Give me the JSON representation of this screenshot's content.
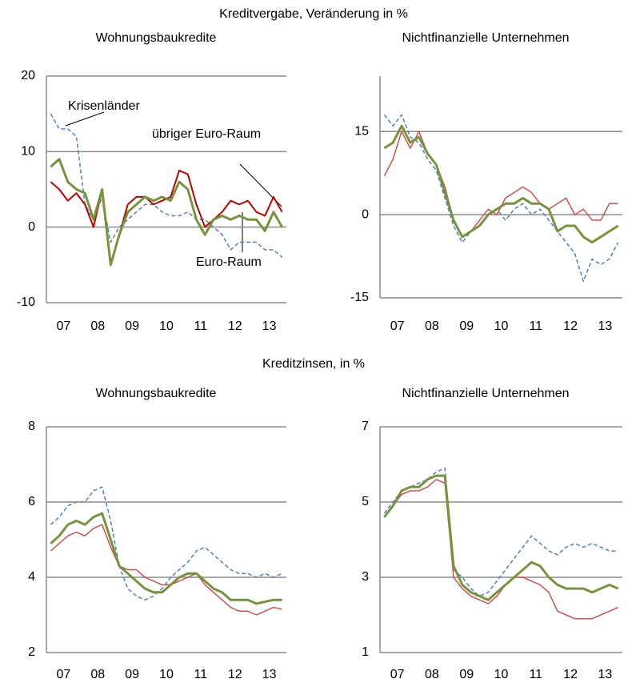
{
  "sections": [
    "Kreditvergabe, Veränderung in %",
    "Kreditzinsen, in %"
  ],
  "chart_data": [
    {
      "type": "line",
      "title": "Wohnungsbaukredite",
      "x": [
        7.125,
        7.375,
        7.625,
        7.875,
        8.125,
        8.375,
        8.625,
        8.875,
        9.125,
        9.375,
        9.625,
        9.875,
        10.125,
        10.375,
        10.625,
        10.875,
        11.125,
        11.375,
        11.625,
        11.875,
        12.125,
        12.375,
        12.625,
        12.875,
        13.125,
        13.375,
        13.625,
        13.875
      ],
      "xlim": [
        7,
        14
      ],
      "xticks": [
        {
          "value": 7.5,
          "label": "07"
        },
        {
          "value": 8.5,
          "label": "08"
        },
        {
          "value": 9.5,
          "label": "09"
        },
        {
          "value": 10.5,
          "label": "10"
        },
        {
          "value": 11.5,
          "label": "11"
        },
        {
          "value": 12.5,
          "label": "12"
        },
        {
          "value": 13.5,
          "label": "13"
        }
      ],
      "ylim": [
        -10,
        20
      ],
      "yticks": [
        -10,
        0,
        10,
        20
      ],
      "grid": true,
      "series": [
        {
          "name": "Krisenländer",
          "color": "#4f81bd",
          "line_style": "dashed",
          "line_width": 1.5,
          "values": [
            15,
            13,
            13,
            12,
            3,
            1,
            4,
            -2,
            0,
            1,
            2,
            3,
            3,
            2,
            1.5,
            1.5,
            2,
            1,
            1,
            0,
            -1,
            -3,
            -2,
            -2,
            -2,
            -3,
            -3,
            -4
          ]
        },
        {
          "name": "übriger Euro-Raum",
          "color": "#c00000",
          "line_style": "solid",
          "line_width": 2,
          "values": [
            6,
            5,
            3.5,
            4.5,
            3,
            0,
            5,
            -5,
            -1,
            3,
            4,
            4,
            3,
            3.5,
            4,
            7.5,
            7,
            3,
            0,
            1,
            2,
            3.5,
            3,
            3.5,
            2,
            1.5,
            4,
            2
          ]
        },
        {
          "name": "Euro-Raum",
          "color": "#77933c",
          "line_style": "solid",
          "line_width": 3,
          "values": [
            8,
            9,
            6,
            5,
            4.5,
            1,
            5,
            -5,
            -1,
            2,
            3,
            4,
            3.5,
            4,
            3.5,
            6,
            5,
            1,
            -1,
            1,
            1.5,
            1,
            1.5,
            1,
            1,
            -0.5,
            2,
            0
          ]
        }
      ]
    },
    {
      "type": "line",
      "title": "Nichtfinanzielle Unternehmen",
      "x": [
        7.125,
        7.375,
        7.625,
        7.875,
        8.125,
        8.375,
        8.625,
        8.875,
        9.125,
        9.375,
        9.625,
        9.875,
        10.125,
        10.375,
        10.625,
        10.875,
        11.125,
        11.375,
        11.625,
        11.875,
        12.125,
        12.375,
        12.625,
        12.875,
        13.125,
        13.375,
        13.625,
        13.875
      ],
      "xlim": [
        7,
        14
      ],
      "xticks": [
        {
          "value": 7.5,
          "label": "07"
        },
        {
          "value": 8.5,
          "label": "08"
        },
        {
          "value": 9.5,
          "label": "09"
        },
        {
          "value": 10.5,
          "label": "10"
        },
        {
          "value": 11.5,
          "label": "11"
        },
        {
          "value": 12.5,
          "label": "12"
        },
        {
          "value": 13.5,
          "label": "13"
        }
      ],
      "ylim": [
        -15,
        25
      ],
      "yticks": [
        -15,
        0,
        15
      ],
      "grid": true,
      "series": [
        {
          "color": "#4f81bd",
          "line_style": "dashed",
          "line_width": 1.5,
          "values": [
            18,
            16,
            18,
            14,
            13,
            10,
            8,
            3,
            -2,
            -5,
            -3,
            -2,
            0,
            1,
            -1,
            1,
            2,
            0,
            1,
            -1,
            -3,
            -5,
            -7,
            -12,
            -8,
            -9,
            -8,
            -5
          ]
        },
        {
          "color": "#d05050",
          "line_style": "solid",
          "line_width": 1.5,
          "values": [
            7,
            10,
            15,
            12,
            15,
            11,
            9,
            5,
            -1,
            -4,
            -3,
            -1,
            1,
            0,
            3,
            4,
            5,
            4,
            2,
            1,
            2,
            3,
            0,
            1,
            -1,
            -1,
            2,
            2
          ]
        },
        {
          "color": "#77933c",
          "line_style": "solid",
          "line_width": 3,
          "values": [
            12,
            13,
            16,
            13,
            14,
            11,
            9,
            4,
            -1,
            -4,
            -3,
            -2,
            0,
            1,
            2,
            2,
            3,
            2,
            2,
            1,
            -3,
            -2,
            -2,
            -4,
            -5,
            -4,
            -3,
            -2
          ]
        }
      ]
    },
    {
      "type": "line",
      "title": "Wohnungsbaukredite",
      "x": [
        7.125,
        7.375,
        7.625,
        7.875,
        8.125,
        8.375,
        8.625,
        8.875,
        9.125,
        9.375,
        9.625,
        9.875,
        10.125,
        10.375,
        10.625,
        10.875,
        11.125,
        11.375,
        11.625,
        11.875,
        12.125,
        12.375,
        12.625,
        12.875,
        13.125,
        13.375,
        13.625,
        13.875
      ],
      "xlim": [
        7,
        14
      ],
      "xticks": [
        {
          "value": 7.5,
          "label": "07"
        },
        {
          "value": 8.5,
          "label": "08"
        },
        {
          "value": 9.5,
          "label": "09"
        },
        {
          "value": 10.5,
          "label": "10"
        },
        {
          "value": 11.5,
          "label": "11"
        },
        {
          "value": 12.5,
          "label": "12"
        },
        {
          "value": 13.5,
          "label": "13"
        }
      ],
      "ylim": [
        2,
        8
      ],
      "yticks": [
        2,
        4,
        6,
        8
      ],
      "grid": true,
      "series": [
        {
          "color": "#4f81bd",
          "line_style": "dashed",
          "line_width": 1.5,
          "values": [
            5.4,
            5.6,
            5.9,
            6.0,
            6.0,
            6.3,
            6.4,
            5.5,
            4.3,
            3.7,
            3.5,
            3.4,
            3.5,
            3.7,
            4.0,
            4.2,
            4.4,
            4.7,
            4.8,
            4.6,
            4.4,
            4.2,
            4.1,
            4.1,
            4.0,
            4.1,
            4.0,
            4.1
          ]
        },
        {
          "color": "#d05050",
          "line_style": "solid",
          "line_width": 1.5,
          "values": [
            4.7,
            4.9,
            5.1,
            5.2,
            5.1,
            5.3,
            5.4,
            4.8,
            4.3,
            4.2,
            4.2,
            4.0,
            3.9,
            3.8,
            3.8,
            3.9,
            4.0,
            4.1,
            3.8,
            3.6,
            3.4,
            3.2,
            3.1,
            3.1,
            3.0,
            3.1,
            3.2,
            3.15
          ]
        },
        {
          "color": "#77933c",
          "line_style": "solid",
          "line_width": 3,
          "values": [
            4.9,
            5.1,
            5.4,
            5.5,
            5.4,
            5.6,
            5.7,
            5.0,
            4.3,
            4.1,
            3.9,
            3.7,
            3.6,
            3.6,
            3.8,
            4.0,
            4.1,
            4.1,
            3.9,
            3.7,
            3.6,
            3.4,
            3.4,
            3.4,
            3.3,
            3.35,
            3.4,
            3.4
          ]
        }
      ]
    },
    {
      "type": "line",
      "title": "Nichtfinanzielle Unternehmen",
      "x": [
        7.125,
        7.375,
        7.625,
        7.875,
        8.125,
        8.375,
        8.625,
        8.875,
        9.125,
        9.375,
        9.625,
        9.875,
        10.125,
        10.375,
        10.625,
        10.875,
        11.125,
        11.375,
        11.625,
        11.875,
        12.125,
        12.375,
        12.625,
        12.875,
        13.125,
        13.375,
        13.625,
        13.875
      ],
      "xlim": [
        7,
        14
      ],
      "xticks": [
        {
          "value": 7.5,
          "label": "07"
        },
        {
          "value": 8.5,
          "label": "08"
        },
        {
          "value": 9.5,
          "label": "09"
        },
        {
          "value": 10.5,
          "label": "10"
        },
        {
          "value": 11.5,
          "label": "11"
        },
        {
          "value": 12.5,
          "label": "12"
        },
        {
          "value": 13.5,
          "label": "13"
        }
      ],
      "ylim": [
        1,
        7
      ],
      "yticks": [
        1,
        3,
        5,
        7
      ],
      "grid": true,
      "series": [
        {
          "color": "#4f81bd",
          "line_style": "dashed",
          "line_width": 1.5,
          "values": [
            4.7,
            5.0,
            5.3,
            5.4,
            5.5,
            5.6,
            5.8,
            5.9,
            3.2,
            3.0,
            2.7,
            2.5,
            2.6,
            2.9,
            3.2,
            3.5,
            3.8,
            4.1,
            3.9,
            3.7,
            3.6,
            3.8,
            3.9,
            3.8,
            3.9,
            3.8,
            3.7,
            3.7
          ]
        },
        {
          "color": "#d05050",
          "line_style": "solid",
          "line_width": 1.5,
          "values": [
            4.6,
            4.9,
            5.2,
            5.3,
            5.3,
            5.4,
            5.6,
            5.5,
            3.0,
            2.7,
            2.5,
            2.4,
            2.3,
            2.5,
            2.8,
            3.0,
            3.0,
            2.9,
            2.8,
            2.6,
            2.1,
            2.0,
            1.9,
            1.9,
            1.9,
            2.0,
            2.1,
            2.2
          ]
        },
        {
          "color": "#77933c",
          "line_style": "solid",
          "line_width": 3,
          "values": [
            4.6,
            4.9,
            5.3,
            5.4,
            5.4,
            5.6,
            5.7,
            5.7,
            3.3,
            2.8,
            2.6,
            2.5,
            2.4,
            2.6,
            2.8,
            3.0,
            3.2,
            3.4,
            3.3,
            3.0,
            2.8,
            2.7,
            2.7,
            2.7,
            2.6,
            2.7,
            2.8,
            2.7
          ]
        }
      ]
    }
  ]
}
